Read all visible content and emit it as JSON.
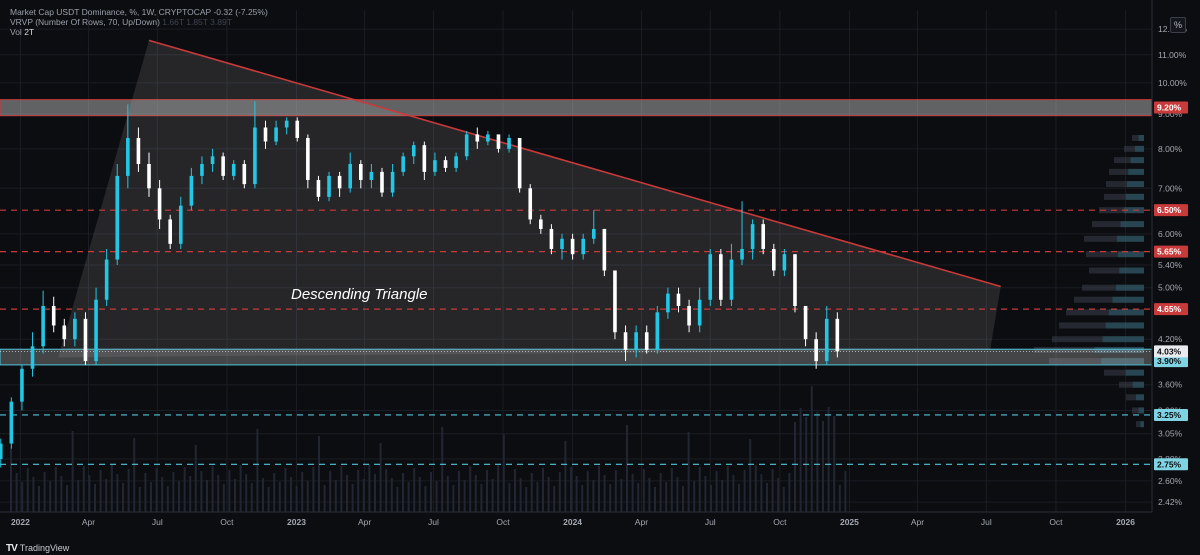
{
  "header": {
    "line1": "Market Cap USDT Dominance, %, 1W, CRYPTOCAP",
    "line1_change": "-0.32 (-7.25%)",
    "line2": "VRVP (Number Of Rows, 70, Up/Down)",
    "line2_values": "1.66T  1.85T  3.89T",
    "line3_label": "Vol",
    "line3_value": "2T"
  },
  "pct_button": "%",
  "footer": {
    "logo": "TV",
    "brand": "TradingView"
  },
  "annotation": "Descending Triangle",
  "colors": {
    "up": "#22c7e6",
    "down": "#ffffff",
    "resistance": "#c93a3a",
    "support": "#4fc6dc",
    "zone": "#d8d8d8"
  },
  "chart_data": {
    "type": "candlestick",
    "symbol": "Market Cap USDT Dominance",
    "interval": "1W",
    "y_scale": "log",
    "ylim": [
      2.34,
      12.8
    ],
    "xlim": [
      "2021-12-05",
      "2026-02-05"
    ],
    "y_ticks": [
      "12.00%",
      "11.00%",
      "10.00%",
      "9.00%",
      "8.00%",
      "7.00%",
      "6.00%",
      "5.40%",
      "5.00%",
      "4.20%",
      "3.60%",
      "3.30%",
      "3.05%",
      "2.80%",
      "2.60%",
      "2.42%"
    ],
    "x_ticks": [
      {
        "label": "2022",
        "date": "2022-01-01"
      },
      {
        "label": "Apr",
        "date": "2022-04-01"
      },
      {
        "label": "Jul",
        "date": "2022-07-01"
      },
      {
        "label": "Oct",
        "date": "2022-10-01"
      },
      {
        "label": "2023",
        "date": "2023-01-01"
      },
      {
        "label": "Apr",
        "date": "2023-04-01"
      },
      {
        "label": "Jul",
        "date": "2023-07-01"
      },
      {
        "label": "Oct",
        "date": "2023-10-01"
      },
      {
        "label": "2024",
        "date": "2024-01-01"
      },
      {
        "label": "Apr",
        "date": "2024-04-01"
      },
      {
        "label": "Jul",
        "date": "2024-07-01"
      },
      {
        "label": "Oct",
        "date": "2024-10-01"
      },
      {
        "label": "2025",
        "date": "2025-01-01"
      },
      {
        "label": "Apr",
        "date": "2025-04-01"
      },
      {
        "label": "Jul",
        "date": "2025-07-01"
      },
      {
        "label": "Oct",
        "date": "2025-10-01"
      },
      {
        "label": "2026",
        "date": "2026-01-01"
      }
    ],
    "levels": [
      {
        "label": "9.20%",
        "value": 9.2,
        "style": "solid",
        "color": "#c93a3a"
      },
      {
        "label": "6.50%",
        "value": 6.5,
        "style": "dashed",
        "color": "#c93a3a"
      },
      {
        "label": "5.65%",
        "value": 5.65,
        "style": "dashed",
        "color": "#c93a3a"
      },
      {
        "label": "4.65%",
        "value": 4.65,
        "style": "dashed",
        "color": "#c93a3a"
      },
      {
        "label": "3.90%",
        "value": 3.9,
        "style": "solid",
        "color": "#4fc6dc"
      },
      {
        "label": "3.25%",
        "value": 3.25,
        "style": "dashed",
        "color": "#4fc6dc"
      },
      {
        "label": "2.75%",
        "value": 2.75,
        "style": "dashed",
        "color": "#4fc6dc"
      }
    ],
    "current_price": {
      "label": "4.03%",
      "value": 4.03
    },
    "zones": [
      {
        "from": 8.95,
        "to": 9.45
      },
      {
        "from": 3.85,
        "to": 4.06
      }
    ],
    "triangle": {
      "apex_top": {
        "date": "2022-06-20",
        "value": 11.55
      },
      "right_top": {
        "date": "2025-07-20",
        "value": 5.02
      },
      "right_bottom": {
        "date": "2025-07-06",
        "value": 4.05
      },
      "left_bottom": {
        "date": "2022-02-20",
        "value": 3.95
      }
    },
    "candles": [
      {
        "d": "2021-12-06",
        "o": 2.8,
        "c": 2.95,
        "h": 3.0,
        "l": 2.72
      },
      {
        "d": "2021-12-20",
        "o": 2.95,
        "c": 3.4,
        "h": 3.45,
        "l": 2.9
      },
      {
        "d": "2022-01-03",
        "o": 3.4,
        "c": 3.8,
        "h": 3.85,
        "l": 3.3
      },
      {
        "d": "2022-01-17",
        "o": 3.8,
        "c": 4.1,
        "h": 4.3,
        "l": 3.7
      },
      {
        "d": "2022-01-31",
        "o": 4.1,
        "c": 4.7,
        "h": 4.95,
        "l": 4.0
      },
      {
        "d": "2022-02-14",
        "o": 4.7,
        "c": 4.4,
        "h": 4.85,
        "l": 4.3
      },
      {
        "d": "2022-02-28",
        "o": 4.4,
        "c": 4.2,
        "h": 4.5,
        "l": 4.1
      },
      {
        "d": "2022-03-14",
        "o": 4.2,
        "c": 4.5,
        "h": 4.6,
        "l": 4.1
      },
      {
        "d": "2022-03-28",
        "o": 4.5,
        "c": 3.9,
        "h": 4.6,
        "l": 3.85
      },
      {
        "d": "2022-04-11",
        "o": 3.9,
        "c": 4.8,
        "h": 5.0,
        "l": 3.85
      },
      {
        "d": "2022-04-25",
        "o": 4.8,
        "c": 5.5,
        "h": 5.7,
        "l": 4.7
      },
      {
        "d": "2022-05-09",
        "o": 5.5,
        "c": 7.3,
        "h": 7.6,
        "l": 5.4
      },
      {
        "d": "2022-05-23",
        "o": 7.3,
        "c": 8.3,
        "h": 9.3,
        "l": 7.0
      },
      {
        "d": "2022-06-06",
        "o": 8.3,
        "c": 7.6,
        "h": 8.6,
        "l": 7.4
      },
      {
        "d": "2022-06-20",
        "o": 7.6,
        "c": 7.0,
        "h": 7.9,
        "l": 6.8
      },
      {
        "d": "2022-07-04",
        "o": 7.0,
        "c": 6.3,
        "h": 7.2,
        "l": 6.1
      },
      {
        "d": "2022-07-18",
        "o": 6.3,
        "c": 5.8,
        "h": 6.4,
        "l": 5.7
      },
      {
        "d": "2022-08-01",
        "o": 5.8,
        "c": 6.6,
        "h": 6.8,
        "l": 5.7
      },
      {
        "d": "2022-08-15",
        "o": 6.6,
        "c": 7.3,
        "h": 7.5,
        "l": 6.5
      },
      {
        "d": "2022-08-29",
        "o": 7.3,
        "c": 7.6,
        "h": 7.8,
        "l": 7.1
      },
      {
        "d": "2022-09-12",
        "o": 7.6,
        "c": 7.8,
        "h": 8.0,
        "l": 7.4
      },
      {
        "d": "2022-09-26",
        "o": 7.8,
        "c": 7.3,
        "h": 7.9,
        "l": 7.2
      },
      {
        "d": "2022-10-10",
        "o": 7.3,
        "c": 7.6,
        "h": 7.7,
        "l": 7.2
      },
      {
        "d": "2022-10-24",
        "o": 7.6,
        "c": 7.1,
        "h": 7.7,
        "l": 7.0
      },
      {
        "d": "2022-11-07",
        "o": 7.1,
        "c": 8.6,
        "h": 9.4,
        "l": 7.0
      },
      {
        "d": "2022-11-21",
        "o": 8.6,
        "c": 8.2,
        "h": 8.8,
        "l": 8.0
      },
      {
        "d": "2022-12-05",
        "o": 8.2,
        "c": 8.6,
        "h": 8.8,
        "l": 8.1
      },
      {
        "d": "2022-12-19",
        "o": 8.6,
        "c": 8.8,
        "h": 8.9,
        "l": 8.4
      },
      {
        "d": "2023-01-02",
        "o": 8.8,
        "c": 8.3,
        "h": 8.9,
        "l": 8.2
      },
      {
        "d": "2023-01-16",
        "o": 8.3,
        "c": 7.2,
        "h": 8.4,
        "l": 7.0
      },
      {
        "d": "2023-01-30",
        "o": 7.2,
        "c": 6.8,
        "h": 7.3,
        "l": 6.7
      },
      {
        "d": "2023-02-13",
        "o": 6.8,
        "c": 7.3,
        "h": 7.4,
        "l": 6.7
      },
      {
        "d": "2023-02-27",
        "o": 7.3,
        "c": 7.0,
        "h": 7.4,
        "l": 6.8
      },
      {
        "d": "2023-03-13",
        "o": 7.0,
        "c": 7.6,
        "h": 7.9,
        "l": 6.9
      },
      {
        "d": "2023-03-27",
        "o": 7.6,
        "c": 7.2,
        "h": 7.7,
        "l": 7.0
      },
      {
        "d": "2023-04-10",
        "o": 7.2,
        "c": 7.4,
        "h": 7.6,
        "l": 7.0
      },
      {
        "d": "2023-04-24",
        "o": 7.4,
        "c": 6.9,
        "h": 7.5,
        "l": 6.8
      },
      {
        "d": "2023-05-08",
        "o": 6.9,
        "c": 7.4,
        "h": 7.6,
        "l": 6.8
      },
      {
        "d": "2023-05-22",
        "o": 7.4,
        "c": 7.8,
        "h": 7.9,
        "l": 7.3
      },
      {
        "d": "2023-06-05",
        "o": 7.8,
        "c": 8.1,
        "h": 8.2,
        "l": 7.6
      },
      {
        "d": "2023-06-19",
        "o": 8.1,
        "c": 7.4,
        "h": 8.2,
        "l": 7.2
      },
      {
        "d": "2023-07-03",
        "o": 7.4,
        "c": 7.7,
        "h": 7.9,
        "l": 7.3
      },
      {
        "d": "2023-07-17",
        "o": 7.7,
        "c": 7.5,
        "h": 7.8,
        "l": 7.4
      },
      {
        "d": "2023-07-31",
        "o": 7.5,
        "c": 7.8,
        "h": 7.9,
        "l": 7.4
      },
      {
        "d": "2023-08-14",
        "o": 7.8,
        "c": 8.4,
        "h": 8.5,
        "l": 7.7
      },
      {
        "d": "2023-08-28",
        "o": 8.4,
        "c": 8.2,
        "h": 8.6,
        "l": 8.0
      },
      {
        "d": "2023-09-11",
        "o": 8.2,
        "c": 8.4,
        "h": 8.5,
        "l": 8.1
      },
      {
        "d": "2023-09-25",
        "o": 8.4,
        "c": 8.0,
        "h": 8.4,
        "l": 7.9
      },
      {
        "d": "2023-10-09",
        "o": 8.0,
        "c": 8.3,
        "h": 8.4,
        "l": 7.9
      },
      {
        "d": "2023-10-23",
        "o": 8.3,
        "c": 7.0,
        "h": 8.3,
        "l": 6.9
      },
      {
        "d": "2023-11-06",
        "o": 7.0,
        "c": 6.3,
        "h": 7.1,
        "l": 6.2
      },
      {
        "d": "2023-11-20",
        "o": 6.3,
        "c": 6.1,
        "h": 6.4,
        "l": 6.0
      },
      {
        "d": "2023-12-04",
        "o": 6.1,
        "c": 5.7,
        "h": 6.2,
        "l": 5.6
      },
      {
        "d": "2023-12-18",
        "o": 5.7,
        "c": 5.9,
        "h": 6.0,
        "l": 5.5
      },
      {
        "d": "2024-01-01",
        "o": 5.9,
        "c": 5.6,
        "h": 6.0,
        "l": 5.5
      },
      {
        "d": "2024-01-15",
        "o": 5.6,
        "c": 5.9,
        "h": 6.0,
        "l": 5.5
      },
      {
        "d": "2024-01-29",
        "o": 5.9,
        "c": 6.1,
        "h": 6.5,
        "l": 5.8
      },
      {
        "d": "2024-02-12",
        "o": 6.1,
        "c": 5.3,
        "h": 6.1,
        "l": 5.2
      },
      {
        "d": "2024-02-26",
        "o": 5.3,
        "c": 4.3,
        "h": 5.3,
        "l": 4.2
      },
      {
        "d": "2024-03-11",
        "o": 4.3,
        "c": 4.05,
        "h": 4.4,
        "l": 3.9
      },
      {
        "d": "2024-03-25",
        "o": 4.05,
        "c": 4.3,
        "h": 4.4,
        "l": 3.95
      },
      {
        "d": "2024-04-08",
        "o": 4.3,
        "c": 4.05,
        "h": 4.4,
        "l": 4.0
      },
      {
        "d": "2024-04-22",
        "o": 4.05,
        "c": 4.6,
        "h": 4.7,
        "l": 4.0
      },
      {
        "d": "2024-05-06",
        "o": 4.6,
        "c": 4.9,
        "h": 5.0,
        "l": 4.5
      },
      {
        "d": "2024-05-20",
        "o": 4.9,
        "c": 4.7,
        "h": 5.0,
        "l": 4.6
      },
      {
        "d": "2024-06-03",
        "o": 4.7,
        "c": 4.4,
        "h": 4.8,
        "l": 4.3
      },
      {
        "d": "2024-06-17",
        "o": 4.4,
        "c": 4.8,
        "h": 5.0,
        "l": 4.3
      },
      {
        "d": "2024-07-01",
        "o": 4.8,
        "c": 5.6,
        "h": 5.7,
        "l": 4.7
      },
      {
        "d": "2024-07-15",
        "o": 5.6,
        "c": 4.8,
        "h": 5.7,
        "l": 4.7
      },
      {
        "d": "2024-07-29",
        "o": 4.8,
        "c": 5.5,
        "h": 5.8,
        "l": 4.7
      },
      {
        "d": "2024-08-12",
        "o": 5.5,
        "c": 5.7,
        "h": 6.7,
        "l": 5.4
      },
      {
        "d": "2024-08-26",
        "o": 5.7,
        "c": 6.2,
        "h": 6.3,
        "l": 5.5
      },
      {
        "d": "2024-09-09",
        "o": 6.2,
        "c": 5.7,
        "h": 6.3,
        "l": 5.6
      },
      {
        "d": "2024-09-23",
        "o": 5.7,
        "c": 5.3,
        "h": 5.8,
        "l": 5.2
      },
      {
        "d": "2024-10-07",
        "o": 5.3,
        "c": 5.6,
        "h": 5.7,
        "l": 5.2
      },
      {
        "d": "2024-10-21",
        "o": 5.6,
        "c": 4.7,
        "h": 5.6,
        "l": 4.6
      },
      {
        "d": "2024-11-04",
        "o": 4.7,
        "c": 4.2,
        "h": 4.7,
        "l": 4.1
      },
      {
        "d": "2024-11-18",
        "o": 4.2,
        "c": 3.9,
        "h": 4.3,
        "l": 3.8
      },
      {
        "d": "2024-12-02",
        "o": 3.9,
        "c": 4.5,
        "h": 4.7,
        "l": 3.85
      },
      {
        "d": "2024-12-16",
        "o": 4.5,
        "c": 4.03,
        "h": 4.6,
        "l": 3.95
      }
    ]
  }
}
